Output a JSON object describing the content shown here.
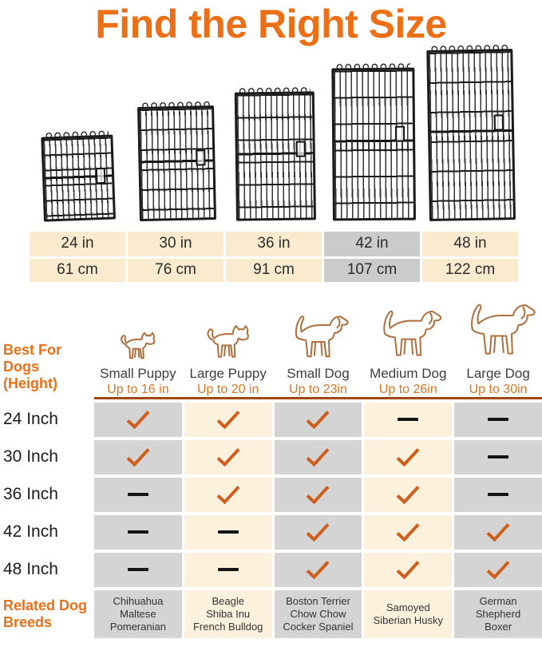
{
  "title": "Find the Right Size",
  "colors": {
    "accent_orange": "#EC6F15",
    "up_to_orange": "#DA7524",
    "check_orange": "#CE5F1D",
    "strip_beige": "#FAEBCF",
    "cell_beige": "#FCF1DD",
    "cell_gray": "#D4D4D4",
    "strip_highlight_gray": "#CBCBCB",
    "rule_brown": "#9E4A12",
    "dog_outline": "#AE6F3C",
    "dash_black": "#141414"
  },
  "crates": [
    "24 in",
    "30 in",
    "36 in",
    "42 in",
    "48 in"
  ],
  "sizes": {
    "inches": [
      "24 in",
      "30 in",
      "36 in",
      "42 in",
      "48 in"
    ],
    "cm": [
      "61 cm",
      "76 cm",
      "91 cm",
      "107 cm",
      "122 cm"
    ],
    "highlighted": "42 in",
    "highlight_index": 3
  },
  "dogs": [
    {
      "name": "Small Puppy",
      "max_height": "Up to 16 in"
    },
    {
      "name": "Large Puppy",
      "max_height": "Up to 20 in"
    },
    {
      "name": "Small Dog",
      "max_height": "Up to 23in"
    },
    {
      "name": "Medium Dog",
      "max_height": "Up to 26in"
    },
    {
      "name": "Large Dog",
      "max_height": "Up to 30in"
    }
  ],
  "table": {
    "header_left": {
      "line1": "Best For Dogs",
      "line2": "(Height)"
    },
    "rows": [
      {
        "label": "24 Inch",
        "cells": [
          "check",
          "check",
          "check",
          "dash",
          "dash"
        ]
      },
      {
        "label": "30 Inch",
        "cells": [
          "check",
          "check",
          "check",
          "check",
          "dash"
        ]
      },
      {
        "label": "36 Inch",
        "cells": [
          "dash",
          "check",
          "check",
          "check",
          "dash"
        ]
      },
      {
        "label": "42 Inch",
        "cells": [
          "dash",
          "dash",
          "check",
          "check",
          "check"
        ]
      },
      {
        "label": "48 Inch",
        "cells": [
          "dash",
          "dash",
          "check",
          "check",
          "check"
        ]
      }
    ],
    "breeds_label": {
      "line1": "Related Dog",
      "line2": "Breeds"
    },
    "breeds": [
      [
        "Chihuahua",
        "Maltese",
        "Pomeranian"
      ],
      [
        "Beagle",
        "Shiba Inu",
        "French Bulldog"
      ],
      [
        "Boston Terrier",
        "Chow Chow",
        "Cocker Spaniel"
      ],
      [
        "Samoyed",
        "Siberian Husky"
      ],
      [
        "German",
        "Shepherd",
        "Boxer"
      ]
    ]
  },
  "chart_data": {
    "type": "table",
    "title": "Find the Right Size",
    "crate_sizes_in": [
      "24 in",
      "30 in",
      "36 in",
      "42 in",
      "48 in"
    ],
    "crate_sizes_cm": [
      "61 cm",
      "76 cm",
      "91 cm",
      "107 cm",
      "122 cm"
    ],
    "highlighted_size": "42 in / 107 cm",
    "columns": [
      "Small Puppy (Up to 16 in)",
      "Large Puppy (Up to 20 in)",
      "Small Dog (Up to 23in)",
      "Medium Dog (Up to 26in)",
      "Large Dog (Up to 30in)"
    ],
    "rows": [
      "24 Inch",
      "30 Inch",
      "36 Inch",
      "42 Inch",
      "48 Inch"
    ],
    "suitable": [
      [
        1,
        1,
        1,
        0,
        0
      ],
      [
        1,
        1,
        1,
        1,
        0
      ],
      [
        0,
        1,
        1,
        1,
        0
      ],
      [
        0,
        0,
        1,
        1,
        1
      ],
      [
        0,
        0,
        1,
        1,
        1
      ]
    ],
    "related_breeds": [
      "Chihuahua Maltese Pomeranian",
      "Beagle Shiba Inu French Bulldog",
      "Boston Terrier Chow Chow Cocker Spaniel",
      "Samoyed Siberian Husky",
      "German Shepherd Boxer"
    ],
    "legend_position": "none",
    "grid": false
  }
}
